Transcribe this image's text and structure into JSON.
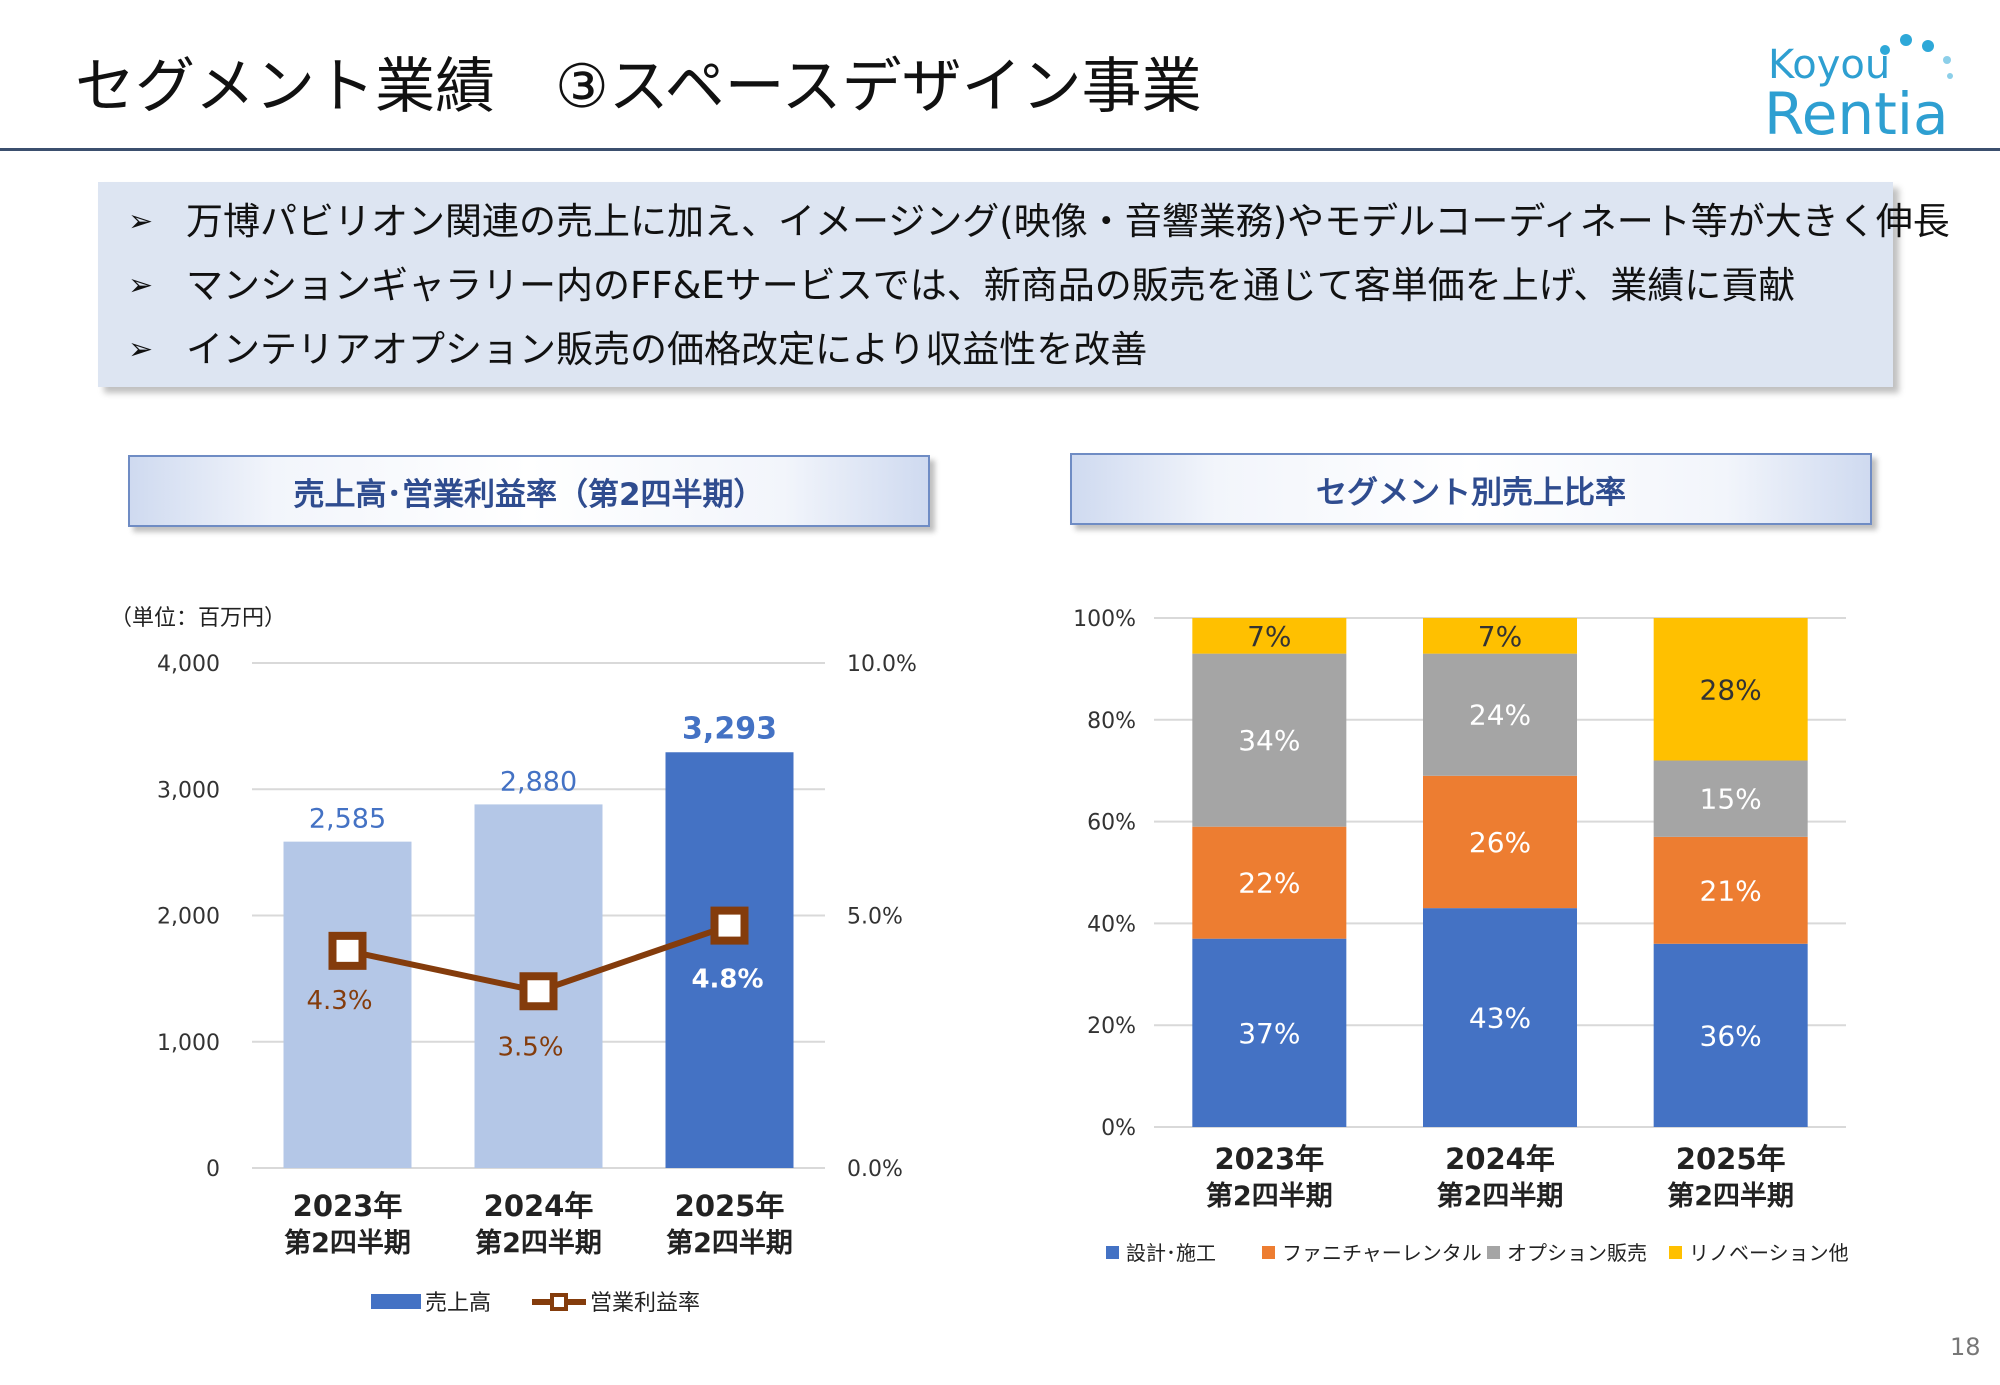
{
  "header": {
    "title": "セグメント業績　③スペースデザイン事業",
    "logo_line1": "Koyou",
    "logo_line2": "Rentia"
  },
  "bullets": [
    "万博パビリオン関連の売上に加え、イメージング(映像・音響業務)やモデルコーディネート等が大きく伸長",
    "マンションギャラリー内のFF&Eサービスでは、新商品の販売を通じて客単価を上げ、業績に貢献",
    "インテリアオプション販売の価格改定により収益性を改善"
  ],
  "bullet_marker": "➢",
  "left_panel": {
    "title": "売上高･営業利益率（第2四半期）",
    "unit": "（単位：百万円）"
  },
  "right_panel": {
    "title": "セグメント別売上比率"
  },
  "page_number": "18",
  "chart_data": [
    {
      "type": "bar",
      "categories": [
        [
          "2023年",
          "第2四半期"
        ],
        [
          "2024年",
          "第2四半期"
        ],
        [
          "2025年",
          "第2四半期"
        ]
      ],
      "series": [
        {
          "name": "売上高",
          "type": "bar",
          "axis": "left",
          "values": [
            2585,
            2880,
            3293
          ],
          "labels": [
            "2,585",
            "2,880",
            "3,293"
          ],
          "colors": [
            "#b4c7e7",
            "#b4c7e7",
            "#4472c4"
          ],
          "label_colors": [
            "#4472c4",
            "#4472c4",
            "#4472c4"
          ]
        },
        {
          "name": "営業利益率",
          "type": "line",
          "axis": "right",
          "values": [
            4.3,
            3.5,
            4.8
          ],
          "labels": [
            "4.3%",
            "3.5%",
            "4.8%"
          ],
          "color": "#843c0c",
          "label_colors": [
            "#843c0c",
            "#843c0c",
            "#ffffff"
          ]
        }
      ],
      "y_left": {
        "ylim": [
          0,
          4000
        ],
        "ticks": [
          0,
          1000,
          2000,
          3000,
          4000
        ],
        "tick_labels": [
          "0",
          "1,000",
          "2,000",
          "3,000",
          "4,000"
        ]
      },
      "y_right": {
        "ylim": [
          0,
          10
        ],
        "ticks": [
          0,
          5,
          10
        ],
        "tick_labels": [
          "0.0%",
          "5.0%",
          "10.0%"
        ]
      },
      "grid": true,
      "legend": "bottom"
    },
    {
      "type": "bar",
      "stacked": true,
      "categories": [
        [
          "2023年",
          "第2四半期"
        ],
        [
          "2024年",
          "第2四半期"
        ],
        [
          "2025年",
          "第2四半期"
        ]
      ],
      "series": [
        {
          "name": "設計･施工",
          "values": [
            37,
            43,
            36
          ],
          "labels": [
            "37%",
            "43%",
            "36%"
          ],
          "color": "#4472c4",
          "label_color": "#ffffff"
        },
        {
          "name": "ファニチャーレンタル",
          "values": [
            22,
            26,
            21
          ],
          "labels": [
            "22%",
            "26%",
            "21%"
          ],
          "color": "#ed7d31",
          "label_color": "#ffffff"
        },
        {
          "name": "オプション販売",
          "values": [
            34,
            24,
            15
          ],
          "labels": [
            "34%",
            "24%",
            "15%"
          ],
          "color": "#a5a5a5",
          "label_color": "#ffffff"
        },
        {
          "name": "リノベーション他",
          "values": [
            7,
            7,
            28
          ],
          "labels": [
            "7%",
            "7%",
            "28%"
          ],
          "color": "#ffc000",
          "label_color": "#333333"
        }
      ],
      "ylim": [
        0,
        100
      ],
      "ticks": [
        0,
        20,
        40,
        60,
        80,
        100
      ],
      "tick_labels": [
        "0%",
        "20%",
        "40%",
        "60%",
        "80%",
        "100%"
      ],
      "grid": true,
      "legend": "bottom"
    }
  ]
}
